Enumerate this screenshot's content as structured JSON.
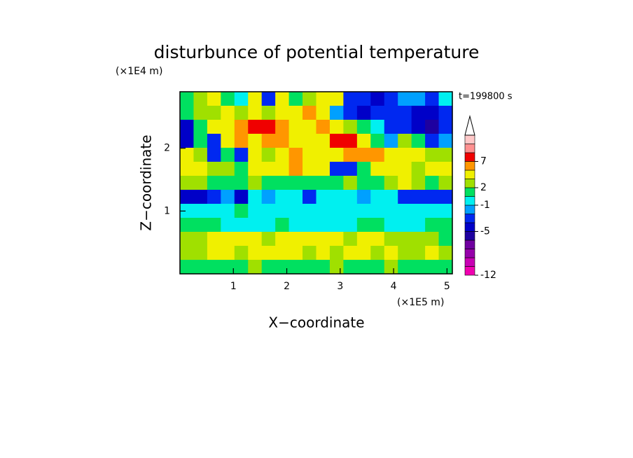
{
  "chart_data": {
    "type": "contour",
    "title": "disturbunce of potential temperature",
    "y_unit_label": "(×1E4 m)",
    "x_unit_label": "(×1E5 m)",
    "time_label": "t=199800 s",
    "x_label": "X−coordinate",
    "y_label": "Z−coordinate",
    "xlim": [
      0,
      5.1
    ],
    "ylim": [
      0,
      2.9
    ],
    "xticks": [
      1,
      2,
      3,
      4,
      5
    ],
    "yticks": [
      1,
      2
    ],
    "levels": [
      -12,
      -10,
      -8,
      -7,
      -6,
      -5,
      -4,
      -2,
      -1,
      0,
      2,
      3,
      5,
      7,
      9,
      11,
      13
    ],
    "colors": [
      "#f000b0",
      "#c800b4",
      "#9600aa",
      "#7000a0",
      "#1e00a0",
      "#0000c8",
      "#0028f0",
      "#00a0ff",
      "#00f0f0",
      "#00e060",
      "#a0e000",
      "#f0f000",
      "#ff9600",
      "#f00000",
      "#ff9090",
      "#ffc8c8"
    ],
    "colorbar_ticks": [
      -12,
      -5,
      -1,
      2,
      7
    ],
    "z": [
      [
        1,
        2,
        3,
        1,
        -1,
        3,
        -3,
        3,
        1,
        2,
        4,
        3,
        -4,
        -4,
        -5,
        -3,
        -2,
        -2,
        -3,
        -1
      ],
      [
        0,
        2,
        2,
        4,
        2,
        4,
        2,
        3,
        4,
        5,
        3,
        -2,
        -4,
        -5,
        -3,
        -3,
        -4,
        -5,
        -5,
        -3
      ],
      [
        -5,
        1,
        3,
        4,
        5,
        7,
        7,
        5,
        4,
        4,
        5,
        3,
        2,
        0,
        -1,
        -3,
        -4,
        -5,
        -6,
        -4
      ],
      [
        -5,
        0,
        -3,
        3,
        5,
        3,
        5,
        5,
        4,
        3,
        4,
        7,
        7,
        3,
        1,
        -2,
        2,
        0,
        -3,
        -2
      ],
      [
        3,
        2,
        -3,
        0,
        -3,
        3,
        2,
        3,
        5,
        4,
        3,
        3,
        6,
        5,
        5,
        3,
        3,
        3,
        2,
        2
      ],
      [
        3,
        3,
        2,
        2,
        1,
        3,
        3,
        3,
        5,
        3,
        3,
        -4,
        -4,
        1,
        3,
        3,
        3,
        2,
        3,
        3
      ],
      [
        2,
        2,
        1,
        1,
        1,
        2,
        0,
        1,
        1,
        0,
        1,
        0,
        2,
        1,
        1,
        2,
        3,
        2,
        1,
        2
      ],
      [
        -5,
        -5,
        -4,
        -2,
        -5,
        -1,
        -2,
        -1,
        -1,
        -3,
        -1,
        -1,
        -1,
        -2,
        -1,
        -1,
        -4,
        -4,
        -4,
        -3
      ],
      [
        -1,
        -1,
        -1,
        -1,
        0,
        -1,
        -1,
        -1,
        -1,
        -1,
        -1,
        -1,
        -1,
        -1,
        -1,
        -1,
        -1,
        -1,
        -1,
        -1
      ],
      [
        1,
        1,
        0,
        -1,
        -1,
        -1,
        -1,
        0,
        -1,
        -1,
        -1,
        -1,
        -1,
        0,
        0,
        -1,
        -1,
        -1,
        1,
        0
      ],
      [
        2,
        2,
        3,
        3,
        3,
        3,
        2,
        3,
        3,
        3,
        3,
        3,
        2,
        3,
        3,
        2,
        2,
        2,
        2,
        1
      ],
      [
        2,
        2,
        3,
        3,
        2,
        3,
        3,
        4,
        3,
        2,
        3,
        2,
        3,
        3,
        2,
        3,
        2,
        2,
        3,
        2
      ],
      [
        1,
        0,
        1,
        1,
        1,
        2,
        1,
        1,
        1,
        0,
        1,
        2,
        1,
        1,
        1,
        2,
        1,
        1,
        1,
        0
      ]
    ]
  }
}
